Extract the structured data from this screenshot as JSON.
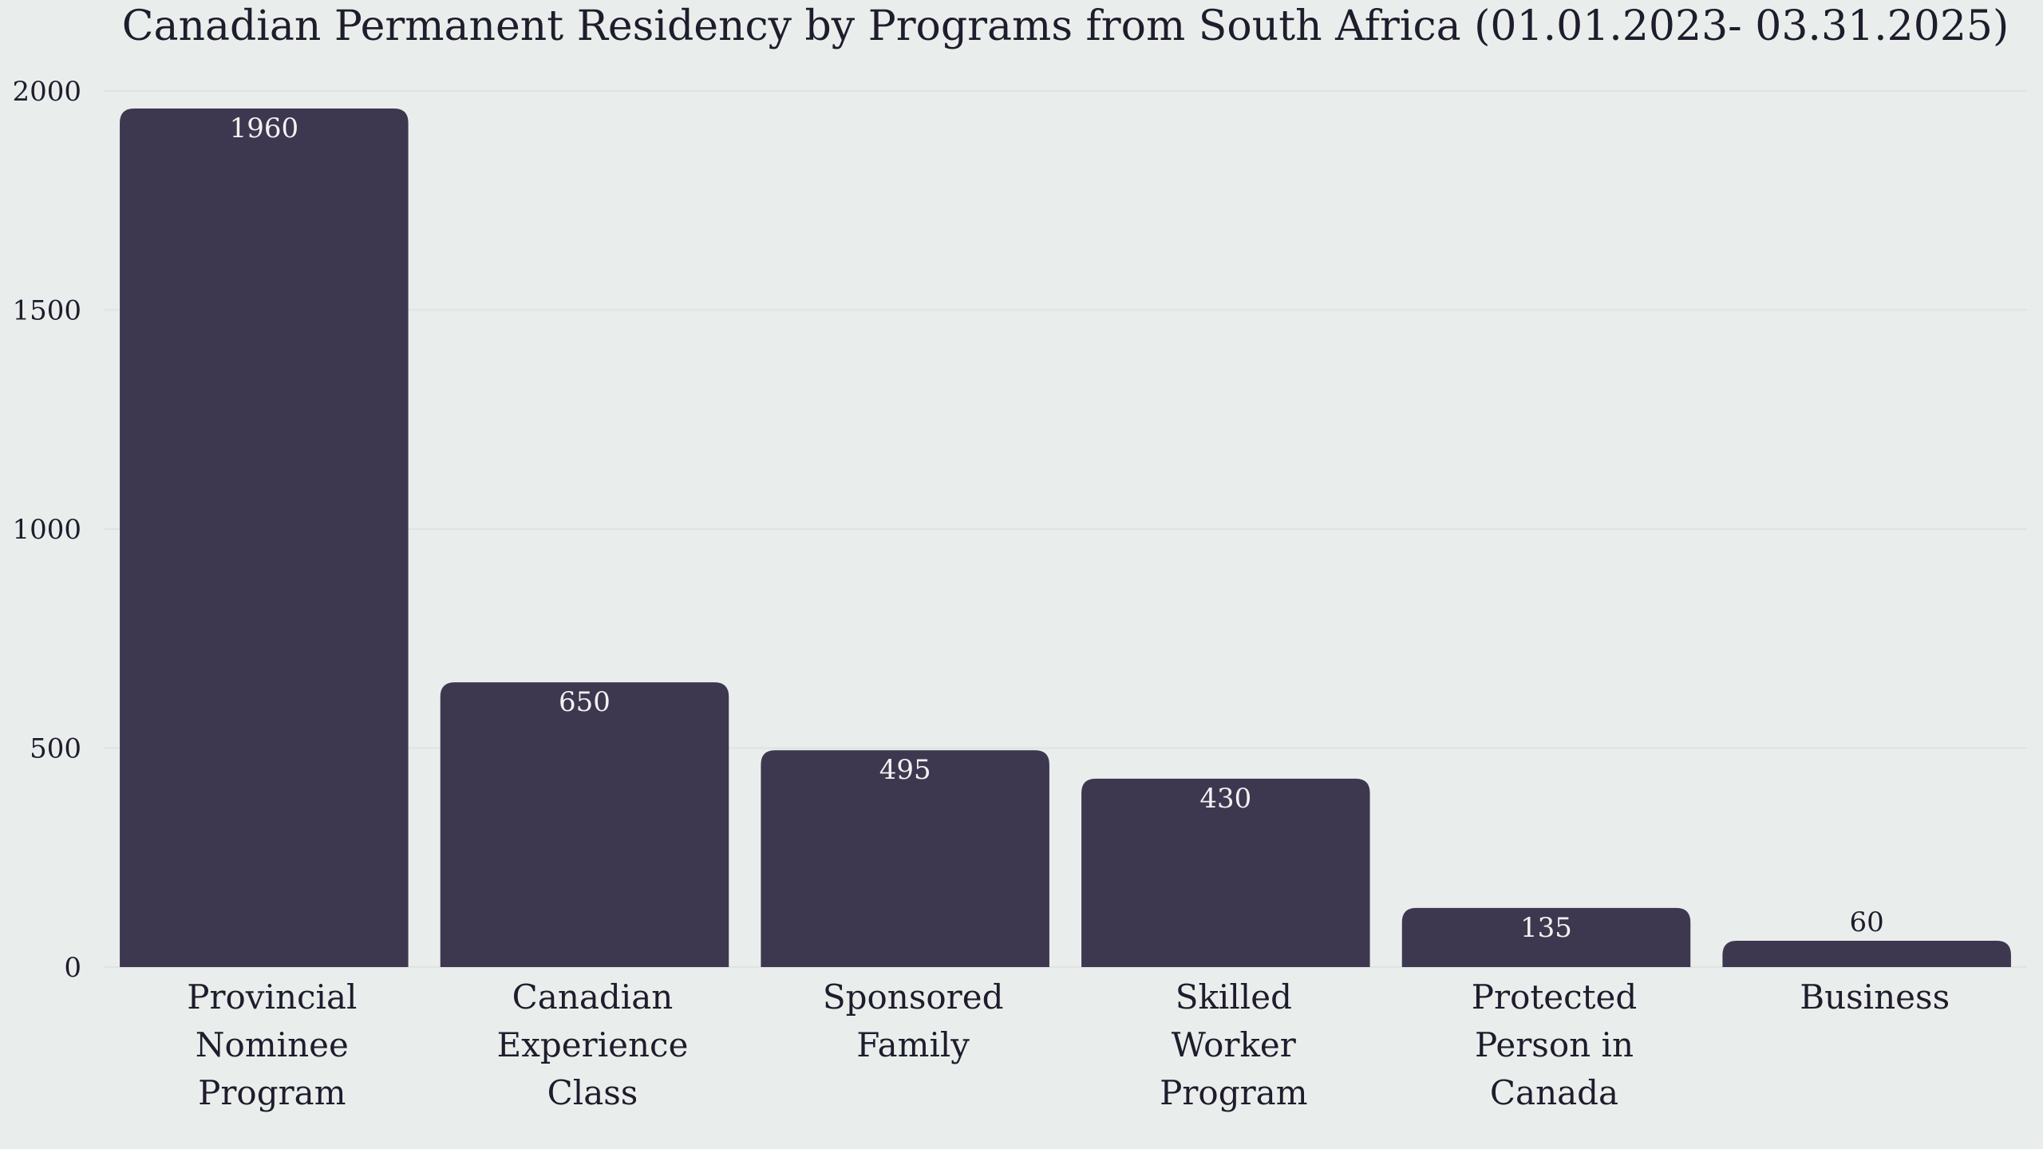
{
  "chart_data": {
    "type": "bar",
    "title": "Canadian Permanent Residency by Programs from South Africa (01.01.2023- 03.31.2025)",
    "categories": [
      [
        "Provincial",
        "Nominee",
        "Program"
      ],
      [
        "Canadian",
        "Experience",
        "Class"
      ],
      [
        "Sponsored",
        "Family"
      ],
      [
        "Skilled",
        "Worker",
        "Program"
      ],
      [
        "Protected",
        "Person in",
        "Canada"
      ],
      [
        "Business"
      ]
    ],
    "values": [
      1960,
      650,
      495,
      430,
      135,
      60
    ],
    "value_labels": [
      "1960",
      "650",
      "495",
      "430",
      "135",
      "60"
    ],
    "yticks": [
      0,
      500,
      1000,
      1500,
      2000
    ],
    "ytick_labels": [
      "0",
      "500",
      "1000",
      "1500",
      "2000"
    ],
    "ylim": [
      0,
      2000
    ],
    "xlabel": "",
    "ylabel": "",
    "grid": true,
    "legend": "none",
    "colors": {
      "bar": "#3d384f",
      "background": "#e9eeec",
      "grid": "#dfe4e2",
      "label_inside": "#f2f2f2",
      "label_outside": "#1f1c2c",
      "text": "#1f1c2c"
    }
  }
}
